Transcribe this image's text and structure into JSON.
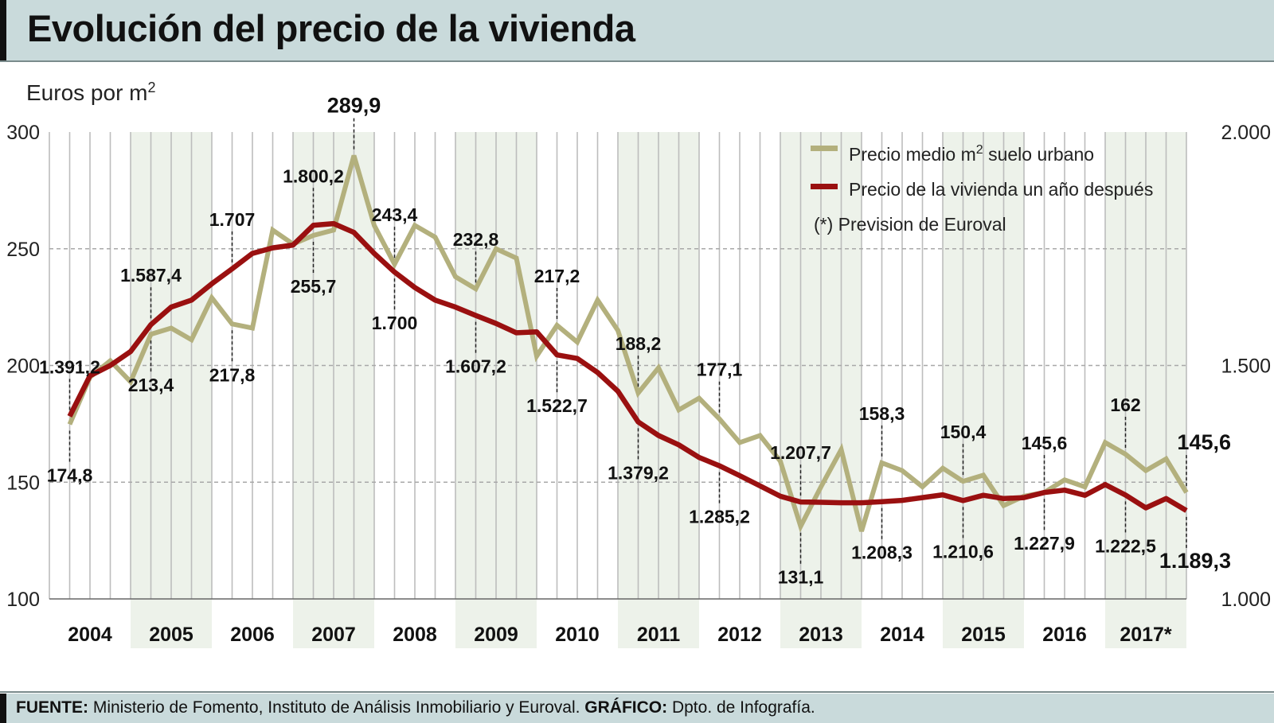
{
  "title": "Evolución del precio de la vivienda",
  "units_label": "Euros por m",
  "units_sup": "2",
  "footer": {
    "source_label": "FUENTE:",
    "source_text": " Ministerio de Fomento, Instituto de Análisis Inmobiliario y Euroval. ",
    "graphic_label": "GRÁFICO:",
    "graphic_text": " Dpto. de Infografía."
  },
  "legend": {
    "series1_label": "Precio medio m",
    "series1_sup": "2",
    "series1_label_end": " suelo urbano",
    "series2_label": "Precio de la vivienda un año después",
    "note": "(*) Prevision de Euroval"
  },
  "colors": {
    "land": "#b3b07d",
    "housing": "#9a1010",
    "band": "#edf2ea",
    "grid": "#bdbdbd",
    "hgrid": "#a8a8a8"
  },
  "chart_data": {
    "type": "line",
    "x_axis": {
      "categories": [
        "2004",
        "2005",
        "2006",
        "2007",
        "2008",
        "2009",
        "2010",
        "2011",
        "2012",
        "2013",
        "2014",
        "2015",
        "2016",
        "2017*"
      ],
      "quarters_per_year": 4
    },
    "y_left": {
      "label": "Euros por m2",
      "range": [
        100,
        300
      ],
      "ticks": [
        "100",
        "150",
        "200",
        "250",
        "300"
      ]
    },
    "y_right": {
      "range": [
        1000,
        2000
      ],
      "ticks": [
        "1.000",
        "1.500",
        "2.000"
      ]
    },
    "series": [
      {
        "name": "Precio medio m2 suelo urbano",
        "axis": "left",
        "values": [
          174.8,
          195,
          202,
          193,
          213.4,
          216,
          211,
          229,
          217.8,
          216,
          258,
          252,
          255.7,
          258,
          289.9,
          260,
          243.4,
          260,
          255,
          238,
          232.8,
          250,
          246,
          204,
          217.2,
          210,
          228,
          215,
          188.2,
          199,
          181,
          186,
          177.1,
          167,
          170,
          159,
          131.1,
          148,
          164,
          129,
          158.3,
          155,
          148,
          156,
          150.4,
          153,
          140,
          144,
          145.6,
          151,
          148,
          167,
          162,
          155,
          160,
          145.6
        ]
      },
      {
        "name": "Precio de la vivienda un año después",
        "axis": "right",
        "values": [
          1391.2,
          1478,
          1500,
          1530,
          1587.4,
          1625,
          1640,
          1675,
          1707,
          1740,
          1752,
          1758,
          1800.2,
          1804,
          1785,
          1740,
          1700,
          1667,
          1640,
          1625,
          1607.2,
          1590,
          1570,
          1572,
          1522.7,
          1515,
          1485,
          1445,
          1379.2,
          1350,
          1330,
          1303,
          1285.2,
          1264,
          1242,
          1220,
          1207.7,
          1207,
          1206,
          1206,
          1208.3,
          1211,
          1217,
          1223,
          1210.6,
          1222,
          1215,
          1217,
          1227.9,
          1233,
          1222,
          1245,
          1222.5,
          1195,
          1215,
          1189.3
        ]
      }
    ],
    "annotations_land": [
      {
        "index": 0,
        "label": "174,8",
        "pos": "below"
      },
      {
        "index": 4,
        "label": "213,4",
        "pos": "below"
      },
      {
        "index": 8,
        "label": "217,8",
        "pos": "below"
      },
      {
        "index": 12,
        "label": "255,7",
        "pos": "below"
      },
      {
        "index": 14,
        "label": "289,9",
        "pos": "above"
      },
      {
        "index": 16,
        "label": "243,4",
        "pos": "above"
      },
      {
        "index": 20,
        "label": "232,8",
        "pos": "above"
      },
      {
        "index": 24,
        "label": "217,2",
        "pos": "above"
      },
      {
        "index": 28,
        "label": "188,2",
        "pos": "above"
      },
      {
        "index": 32,
        "label": "177,1",
        "pos": "above"
      },
      {
        "index": 36,
        "label": "131,1",
        "pos": "below"
      },
      {
        "index": 40,
        "label": "158,3",
        "pos": "above"
      },
      {
        "index": 44,
        "label": "150,4",
        "pos": "above"
      },
      {
        "index": 48,
        "label": "145,6",
        "pos": "above"
      },
      {
        "index": 52,
        "label": "162",
        "pos": "above"
      },
      {
        "index": 55,
        "label": "145,6",
        "pos": "above"
      }
    ],
    "annotations_housing": [
      {
        "index": 0,
        "label": "1.391,2",
        "pos": "above"
      },
      {
        "index": 4,
        "label": "1.587,4",
        "pos": "above"
      },
      {
        "index": 8,
        "label": "1.707",
        "pos": "above"
      },
      {
        "index": 12,
        "label": "1.800,2",
        "pos": "above"
      },
      {
        "index": 16,
        "label": "1.700",
        "pos": "below"
      },
      {
        "index": 20,
        "label": "1.607,2",
        "pos": "below"
      },
      {
        "index": 24,
        "label": "1.522,7",
        "pos": "below"
      },
      {
        "index": 28,
        "label": "1.379,2",
        "pos": "below"
      },
      {
        "index": 32,
        "label": "1.285,2",
        "pos": "below"
      },
      {
        "index": 36,
        "label": "1.207,7",
        "pos": "above"
      },
      {
        "index": 40,
        "label": "1.208,3",
        "pos": "below"
      },
      {
        "index": 44,
        "label": "1.210,6",
        "pos": "below"
      },
      {
        "index": 48,
        "label": "1.227,9",
        "pos": "below"
      },
      {
        "index": 52,
        "label": "1.222,5",
        "pos": "below"
      },
      {
        "index": 55,
        "label": "1.189,3",
        "pos": "below"
      }
    ]
  }
}
